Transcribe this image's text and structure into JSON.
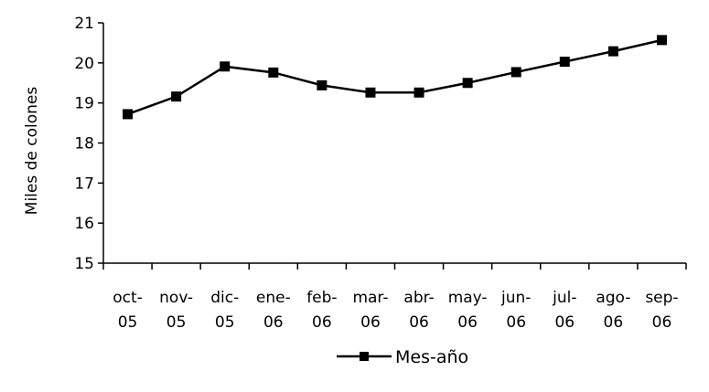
{
  "chart_data": {
    "type": "line",
    "categories": [
      [
        "oct-",
        "05"
      ],
      [
        "nov-",
        "05"
      ],
      [
        "dic-",
        "05"
      ],
      [
        "ene-",
        "06"
      ],
      [
        "feb-",
        "06"
      ],
      [
        "mar-",
        "06"
      ],
      [
        "abr-",
        "06"
      ],
      [
        "may-",
        "06"
      ],
      [
        "jun-",
        "06"
      ],
      [
        "jul-",
        "06"
      ],
      [
        "ago-",
        "06"
      ],
      [
        "sep-",
        "06"
      ]
    ],
    "series": [
      {
        "name": "Mes-año",
        "values": [
          18.72,
          19.16,
          19.91,
          19.76,
          19.44,
          19.26,
          19.26,
          19.5,
          19.77,
          20.03,
          20.29,
          20.57
        ]
      }
    ],
    "title": "",
    "xlabel": "",
    "ylabel": "Miles de colones",
    "ylim": [
      15,
      21
    ],
    "yticks": [
      15,
      16,
      17,
      18,
      19,
      20,
      21
    ],
    "grid": false,
    "legend": "bottom",
    "line_color": "#000000",
    "marker": "square"
  }
}
